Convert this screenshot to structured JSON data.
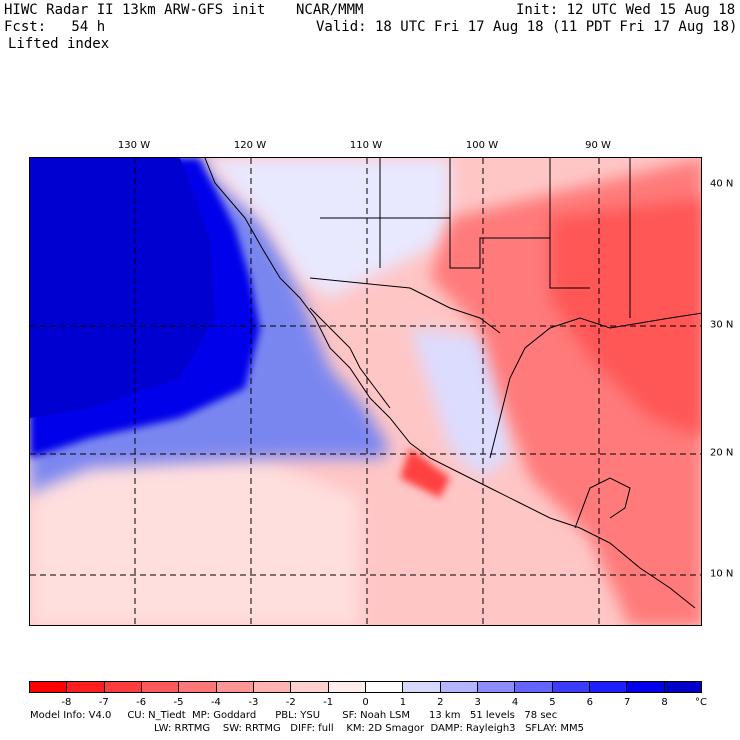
{
  "header": {
    "model": "HIWC Radar II 13km ARW-GFS init",
    "org": "NCAR/MMM",
    "init": "Init: 12 UTC Wed 15 Aug 18",
    "fcst": "Fcst:   54 h",
    "valid": "Valid: 18 UTC Fri 17 Aug 18 (11 PDT Fri 17 Aug 18)",
    "field": "Lifted index"
  },
  "map": {
    "lon_labels": [
      "130 W",
      "120 W",
      "110 W",
      "100 W",
      "90 W"
    ],
    "lat_labels": [
      "40 N",
      "30 N",
      "20 N",
      "10 N"
    ]
  },
  "colorbar": {
    "unit": "°C",
    "ticks": [
      "-8",
      "-7",
      "-6",
      "-5",
      "-4",
      "-3",
      "-2",
      "-1",
      "0",
      "1",
      "2",
      "3",
      "4",
      "5",
      "6",
      "7",
      "8"
    ],
    "colors": [
      "#ff0000",
      "#ff1f1f",
      "#ff3d3d",
      "#ff5a5a",
      "#ff7777",
      "#ff9595",
      "#ffb2b2",
      "#ffd0d0",
      "#ffeded",
      "#ffffff",
      "#d8d8ff",
      "#b4b4ff",
      "#8c8cff",
      "#6464ff",
      "#3c3cff",
      "#1e1eff",
      "#0000ee",
      "#0000c8"
    ]
  },
  "footer": {
    "line1": "Model Info: V4.0     CU: N_Tiedt  MP: Goddard      PBL: YSU       SF: Noah LSM      13 km   51 levels   78 sec",
    "line2": "LW: RRTMG    SW: RRTMG   DIFF: full    KM: 2D Smagor  DAMP: Rayleigh3   SFLAY: MM5"
  }
}
